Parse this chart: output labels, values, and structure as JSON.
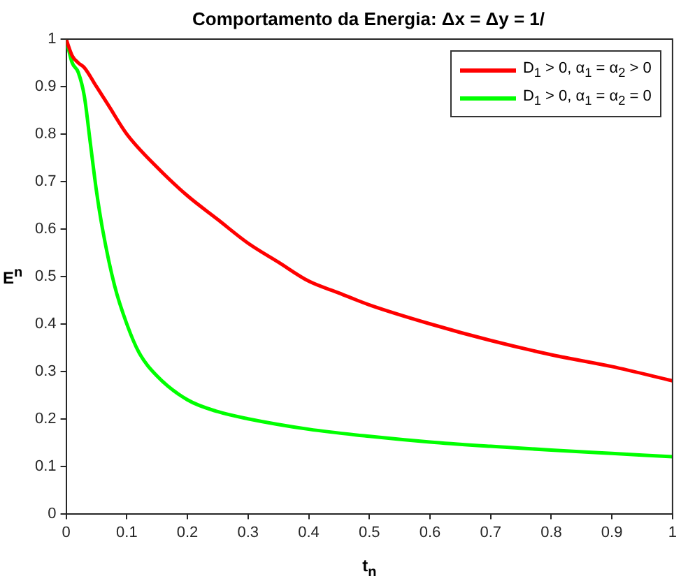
{
  "chart_data": {
    "type": "line",
    "title": "Comportamento da Energia:  Δx = Δy = 1/",
    "xlabel": "t$_{n}$",
    "ylabel": "E$^{n}$",
    "xlim": [
      0,
      1
    ],
    "xticks": [
      0,
      0.1,
      0.2,
      0.3,
      0.4,
      0.5,
      0.6,
      0.7,
      0.8,
      0.9,
      1
    ],
    "ylim": [
      0,
      1
    ],
    "yticks": [
      0,
      0.1,
      0.2,
      0.3,
      0.4,
      0.5,
      0.6,
      0.7,
      0.8,
      0.9,
      1
    ],
    "grid": false,
    "legend": "top right",
    "marker": "none",
    "line_style": "solid",
    "series": [
      {
        "name": "D$_{1}$ > 0, α$_{1}$ = α$_{2}$ > 0",
        "color": "#ff0000",
        "x": [
          0,
          0.01,
          0.02,
          0.03,
          0.05,
          0.07,
          0.1,
          0.15,
          0.2,
          0.25,
          0.3,
          0.35,
          0.4,
          0.45,
          0.5,
          0.6,
          0.7,
          0.8,
          0.9,
          1
        ],
        "values": [
          1,
          0.965,
          0.95,
          0.94,
          0.9,
          0.86,
          0.8,
          0.73,
          0.67,
          0.62,
          0.57,
          0.53,
          0.49,
          0.465,
          0.44,
          0.4,
          0.365,
          0.335,
          0.31,
          0.28
        ]
      },
      {
        "name": "D$_{1}$ > 0, α$_{1}$ = α$_{2}$ = 0",
        "color": "#00ff00",
        "x": [
          0,
          0.01,
          0.02,
          0.03,
          0.04,
          0.05,
          0.06,
          0.08,
          0.1,
          0.12,
          0.15,
          0.2,
          0.25,
          0.3,
          0.4,
          0.5,
          0.6,
          0.7,
          0.8,
          0.9,
          1
        ],
        "values": [
          1,
          0.95,
          0.93,
          0.88,
          0.78,
          0.68,
          0.6,
          0.48,
          0.4,
          0.34,
          0.29,
          0.24,
          0.215,
          0.2,
          0.178,
          0.163,
          0.151,
          0.142,
          0.134,
          0.127,
          0.12
        ]
      }
    ]
  }
}
